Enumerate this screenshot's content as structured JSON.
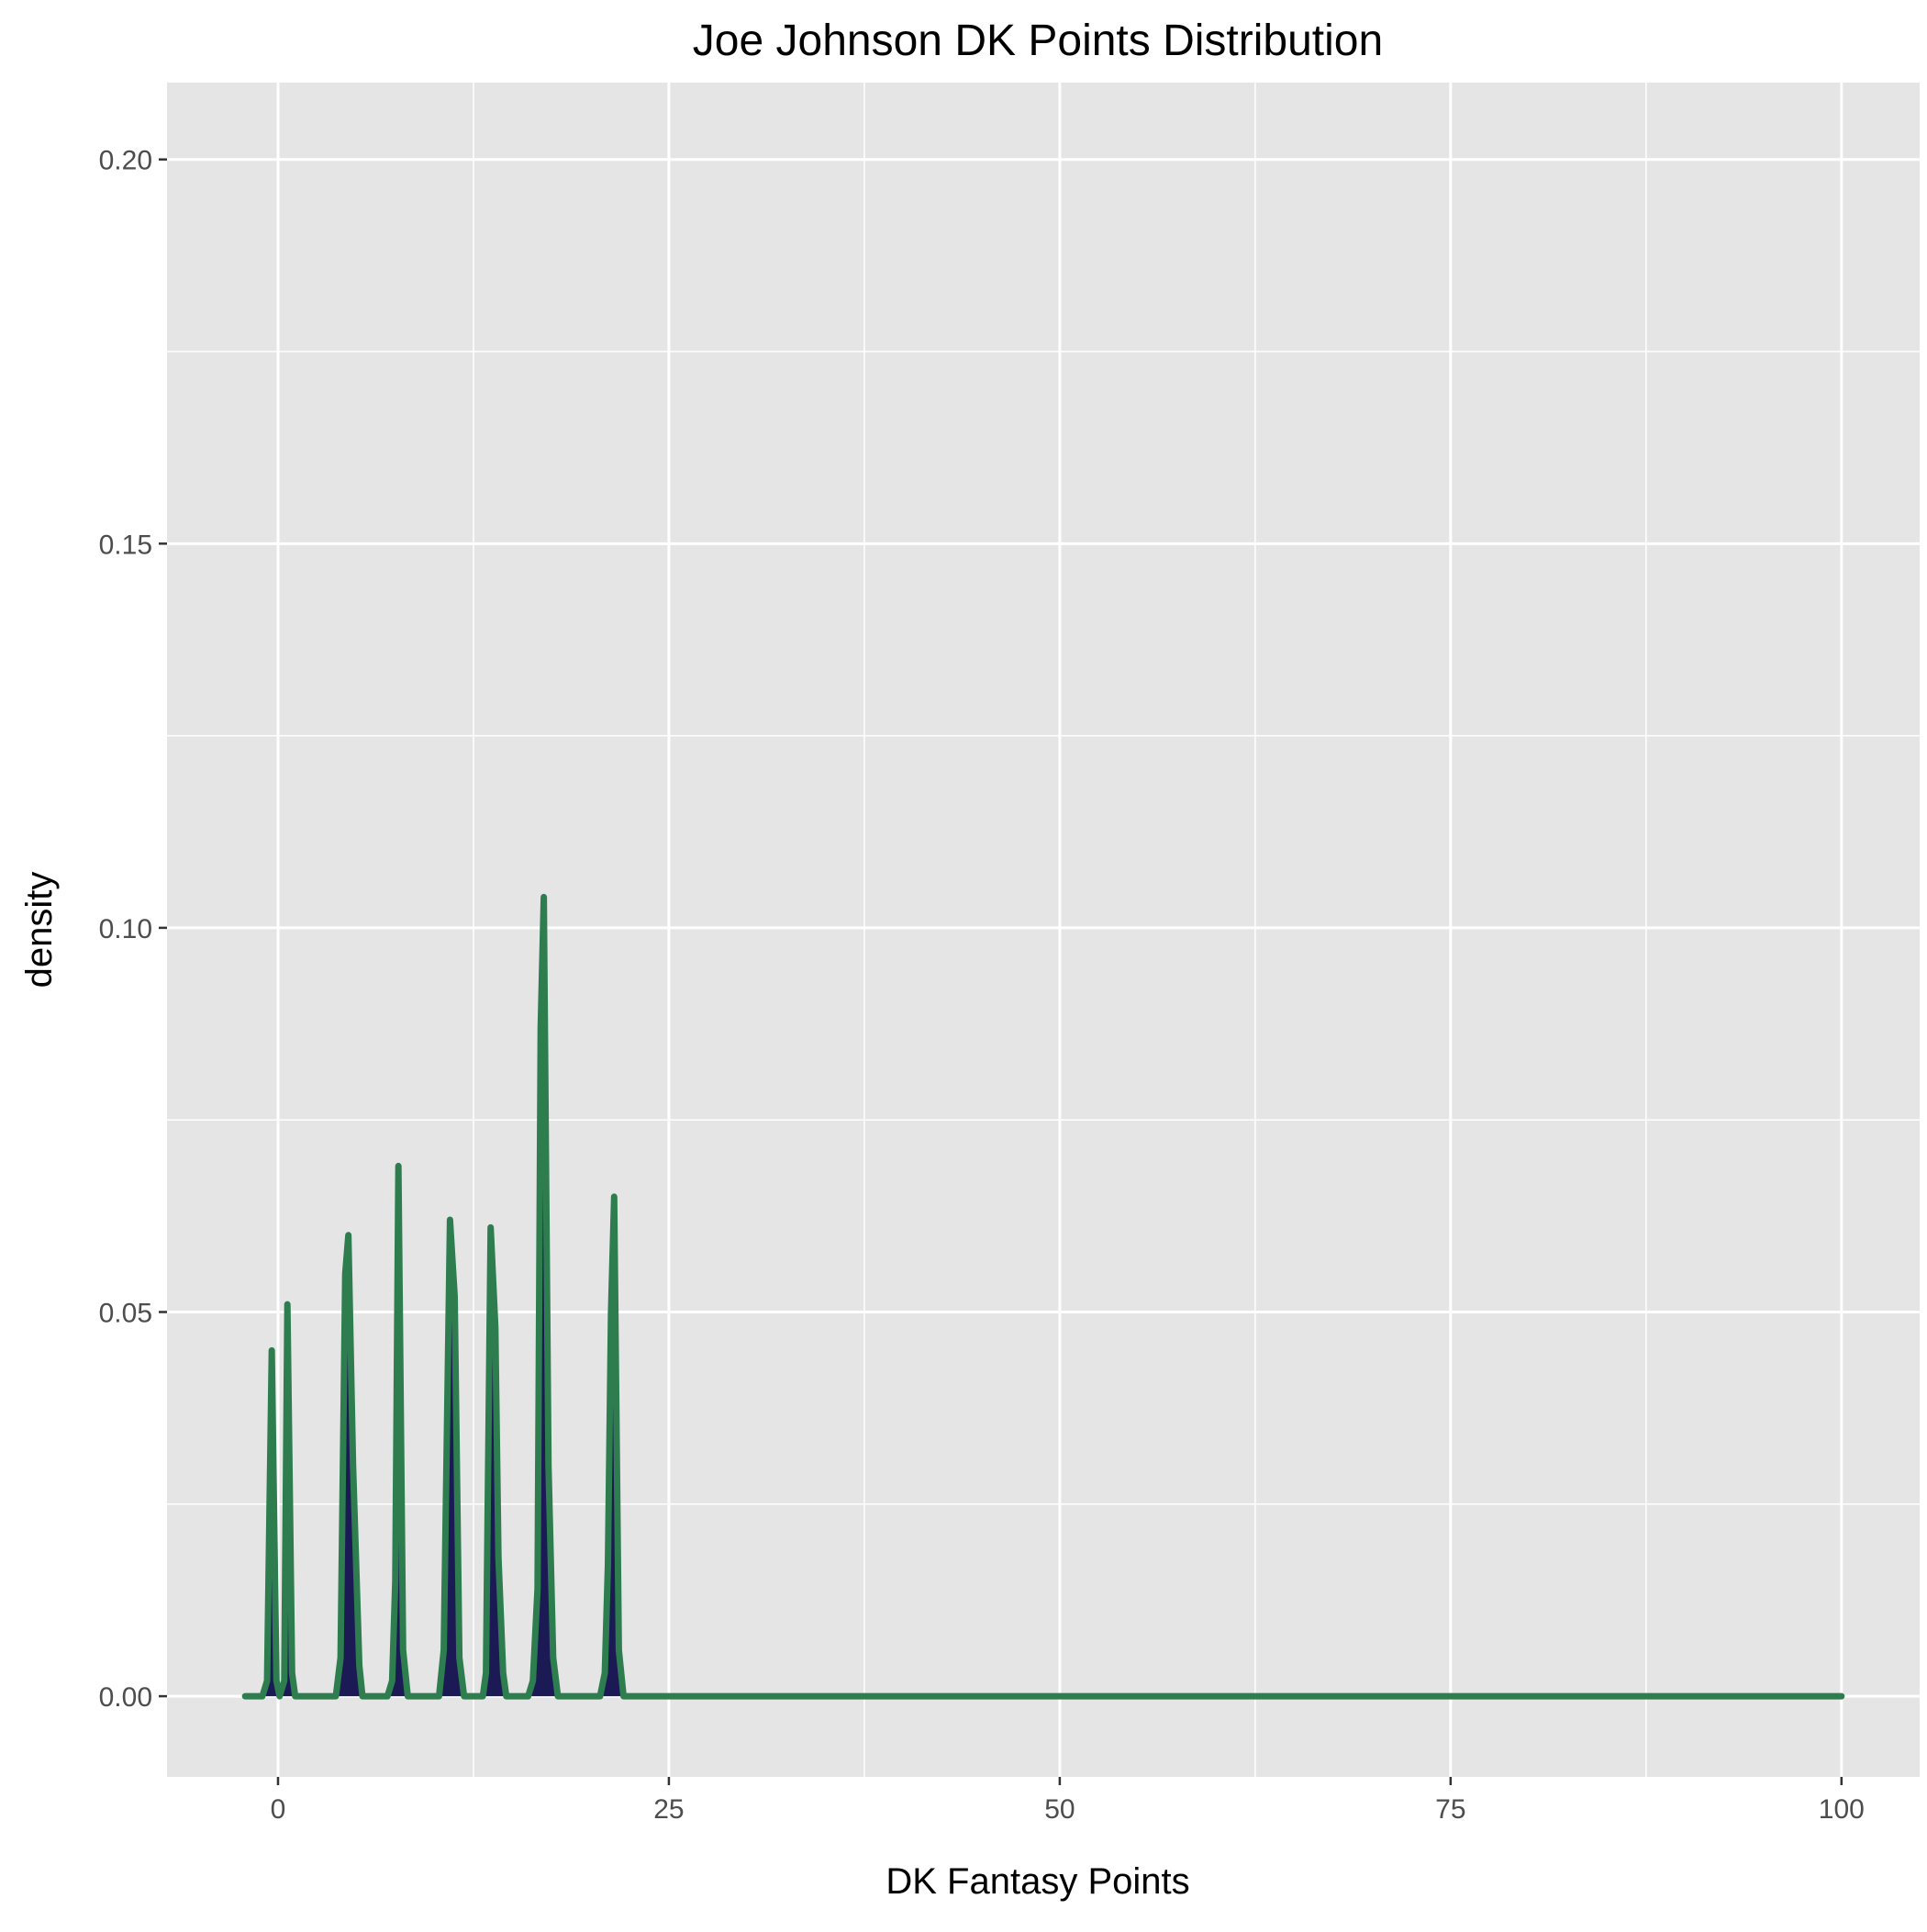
{
  "chart_data": {
    "type": "area",
    "title": "Joe Johnson DK Points Distribution",
    "xlabel": "DK Fantasy Points",
    "ylabel": "density",
    "xlim": [
      -7.1,
      105.0
    ],
    "ylim": [
      -0.0105,
      0.21
    ],
    "x_ticks": [
      0,
      25,
      50,
      75,
      100
    ],
    "x_tick_labels": [
      "0",
      "25",
      "50",
      "75",
      "100"
    ],
    "y_ticks": [
      0.0,
      0.05,
      0.1,
      0.15,
      0.2
    ],
    "y_tick_labels": [
      "0.00",
      "0.05",
      "0.10",
      "0.15",
      "0.20"
    ],
    "grid": true,
    "legend": "none",
    "colors": {
      "panel_background": "#e5e5e5",
      "grid_line": "#ffffff",
      "fill": "#1b1a55",
      "line": "#2e7d4f",
      "tick_text": "#4d4d4d",
      "title_text": "#000000"
    },
    "series": [
      {
        "values": [
          [
            -2.1,
            0.0
          ],
          [
            -1.0,
            0.0
          ],
          [
            -0.7,
            0.002
          ],
          [
            -0.4,
            0.045
          ],
          [
            -0.1,
            0.002
          ],
          [
            0.1,
            0.0
          ],
          [
            0.4,
            0.002
          ],
          [
            0.6,
            0.051
          ],
          [
            0.9,
            0.003
          ],
          [
            1.1,
            0.0
          ],
          [
            3.7,
            0.0
          ],
          [
            4.0,
            0.005
          ],
          [
            4.3,
            0.055
          ],
          [
            4.5,
            0.06
          ],
          [
            4.8,
            0.03
          ],
          [
            5.2,
            0.004
          ],
          [
            5.4,
            0.0
          ],
          [
            7.0,
            0.0
          ],
          [
            7.3,
            0.002
          ],
          [
            7.5,
            0.015
          ],
          [
            7.7,
            0.069
          ],
          [
            8.0,
            0.006
          ],
          [
            8.3,
            0.0
          ],
          [
            10.3,
            0.0
          ],
          [
            10.6,
            0.006
          ],
          [
            11.0,
            0.062
          ],
          [
            11.3,
            0.052
          ],
          [
            11.6,
            0.005
          ],
          [
            11.9,
            0.0
          ],
          [
            13.1,
            0.0
          ],
          [
            13.3,
            0.003
          ],
          [
            13.6,
            0.061
          ],
          [
            13.9,
            0.048
          ],
          [
            14.1,
            0.018
          ],
          [
            14.4,
            0.003
          ],
          [
            14.6,
            0.0
          ],
          [
            16.0,
            0.0
          ],
          [
            16.3,
            0.002
          ],
          [
            16.6,
            0.014
          ],
          [
            16.8,
            0.087
          ],
          [
            17.0,
            0.104
          ],
          [
            17.3,
            0.03
          ],
          [
            17.6,
            0.005
          ],
          [
            17.9,
            0.0
          ],
          [
            20.6,
            0.0
          ],
          [
            20.9,
            0.003
          ],
          [
            21.1,
            0.017
          ],
          [
            21.3,
            0.05
          ],
          [
            21.5,
            0.065
          ],
          [
            21.8,
            0.006
          ],
          [
            22.1,
            0.0
          ],
          [
            25.0,
            0.0
          ],
          [
            50.0,
            0.0
          ],
          [
            75.0,
            0.0
          ],
          [
            100.0,
            0.0
          ]
        ]
      }
    ]
  }
}
